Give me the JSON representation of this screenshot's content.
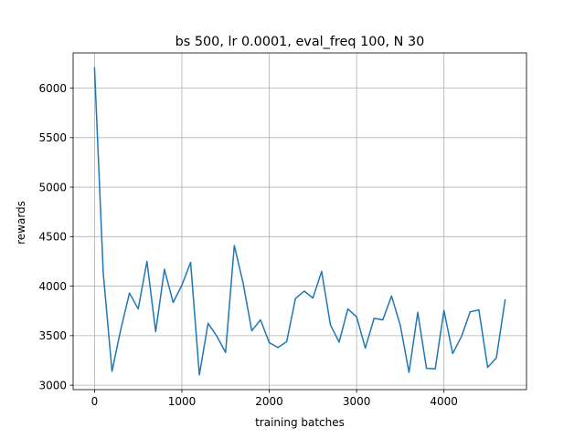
{
  "chart_data": {
    "type": "line",
    "title": "bs 500, lr 0.0001, eval_freq 100, N 30",
    "xlabel": "training batches",
    "ylabel": "rewards",
    "xlim": [
      -245,
      4945
    ],
    "ylim": [
      2955,
      6355
    ],
    "grid": true,
    "xticks": [
      0,
      1000,
      2000,
      3000,
      4000
    ],
    "yticks": [
      3000,
      3500,
      4000,
      4500,
      5000,
      5500,
      6000
    ],
    "series": [
      {
        "color": "#1f77b4",
        "x": [
          0,
          100,
          200,
          300,
          400,
          500,
          600,
          700,
          800,
          900,
          1000,
          1100,
          1200,
          1300,
          1400,
          1500,
          1600,
          1700,
          1800,
          1900,
          2000,
          2100,
          2200,
          2300,
          2400,
          2500,
          2600,
          2700,
          2800,
          2900,
          3000,
          3100,
          3200,
          3300,
          3400,
          3500,
          3600,
          3700,
          3800,
          3900,
          4000,
          4100,
          4200,
          4300,
          4400,
          4500,
          4600,
          4700
        ],
        "y": [
          6205,
          4130,
          3140,
          3560,
          3930,
          3770,
          4250,
          3540,
          4170,
          3835,
          4010,
          4240,
          3105,
          3625,
          3495,
          3330,
          4410,
          4035,
          3550,
          3660,
          3430,
          3380,
          3440,
          3875,
          3950,
          3880,
          4150,
          3610,
          3435,
          3770,
          3690,
          3375,
          3675,
          3660,
          3900,
          3605,
          3130,
          3735,
          3170,
          3165,
          3755,
          3320,
          3490,
          3740,
          3760,
          3180,
          3275,
          3860
        ]
      }
    ]
  }
}
